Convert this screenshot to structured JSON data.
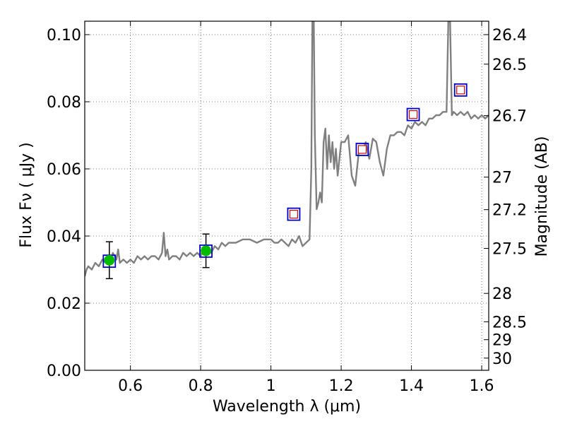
{
  "chart_data": {
    "type": "line",
    "xlabel": "Wavelength  λ (μm)",
    "ylabel": "Flux  Fν  ( μJy )",
    "y2label": "Magnitude (AB)",
    "xlim": [
      0.47,
      1.62
    ],
    "ylim": [
      0.0,
      0.104
    ],
    "x_ticks": [
      0.6,
      0.8,
      1.0,
      1.2,
      1.4,
      1.6
    ],
    "x_tick_labels": [
      "0.6",
      "0.8",
      "1",
      "1.2",
      "1.4",
      "1.6"
    ],
    "y_ticks": [
      0.0,
      0.02,
      0.04,
      0.06,
      0.08,
      0.1
    ],
    "y_tick_labels": [
      "0.00",
      "0.02",
      "0.04",
      "0.06",
      "0.08",
      "0.10"
    ],
    "y2_ticks": [
      {
        "label": "26.4",
        "mag": 26.4
      },
      {
        "label": "26.5",
        "mag": 26.5
      },
      {
        "label": "26.7",
        "mag": 26.7
      },
      {
        "label": "27",
        "mag": 27.0
      },
      {
        "label": "27.2",
        "mag": 27.2
      },
      {
        "label": "27.5",
        "mag": 27.5
      },
      {
        "label": "28",
        "mag": 28.0
      },
      {
        "label": "28.5",
        "mag": 28.5
      },
      {
        "label": "29",
        "mag": 29.0
      },
      {
        "label": "30",
        "mag": 30.0
      }
    ],
    "grid": true,
    "colors": {
      "spectrum": "#808080",
      "observed_marker": "#00bb00",
      "model_box": "#0000cc",
      "upper_limit_box": "#dd0000",
      "errorbar": "#000000"
    },
    "series": [
      {
        "name": "model spectrum",
        "kind": "line",
        "x": [
          0.47,
          0.475,
          0.48,
          0.49,
          0.5,
          0.51,
          0.52,
          0.53,
          0.54,
          0.545,
          0.55,
          0.56,
          0.565,
          0.57,
          0.58,
          0.59,
          0.6,
          0.61,
          0.62,
          0.63,
          0.64,
          0.65,
          0.66,
          0.67,
          0.68,
          0.69,
          0.695,
          0.7,
          0.705,
          0.71,
          0.72,
          0.73,
          0.74,
          0.75,
          0.76,
          0.77,
          0.78,
          0.79,
          0.8,
          0.81,
          0.82,
          0.83,
          0.84,
          0.85,
          0.86,
          0.87,
          0.88,
          0.89,
          0.9,
          0.92,
          0.94,
          0.96,
          0.98,
          1.0,
          1.01,
          1.02,
          1.03,
          1.04,
          1.05,
          1.06,
          1.07,
          1.08,
          1.09,
          1.1,
          1.11,
          1.115,
          1.118,
          1.122,
          1.125,
          1.13,
          1.135,
          1.14,
          1.145,
          1.15,
          1.155,
          1.16,
          1.165,
          1.17,
          1.175,
          1.18,
          1.185,
          1.19,
          1.2,
          1.21,
          1.22,
          1.23,
          1.24,
          1.25,
          1.26,
          1.27,
          1.28,
          1.29,
          1.3,
          1.31,
          1.32,
          1.33,
          1.34,
          1.35,
          1.36,
          1.37,
          1.38,
          1.39,
          1.4,
          1.41,
          1.42,
          1.43,
          1.44,
          1.45,
          1.46,
          1.47,
          1.48,
          1.49,
          1.5,
          1.505,
          1.51,
          1.515,
          1.52,
          1.53,
          1.54,
          1.55,
          1.56,
          1.57,
          1.58,
          1.59,
          1.6,
          1.61,
          1.62
        ],
        "y": [
          0.028,
          0.03,
          0.031,
          0.03,
          0.032,
          0.031,
          0.033,
          0.032,
          0.034,
          0.033,
          0.035,
          0.033,
          0.036,
          0.032,
          0.033,
          0.032,
          0.033,
          0.032,
          0.034,
          0.033,
          0.034,
          0.033,
          0.034,
          0.034,
          0.033,
          0.035,
          0.041,
          0.034,
          0.036,
          0.033,
          0.034,
          0.034,
          0.033,
          0.035,
          0.034,
          0.035,
          0.034,
          0.035,
          0.034,
          0.036,
          0.037,
          0.035,
          0.037,
          0.036,
          0.038,
          0.037,
          0.038,
          0.038,
          0.038,
          0.039,
          0.039,
          0.038,
          0.039,
          0.039,
          0.038,
          0.038,
          0.039,
          0.038,
          0.037,
          0.039,
          0.038,
          0.04,
          0.037,
          0.038,
          0.039,
          0.06,
          0.104,
          0.104,
          0.07,
          0.048,
          0.05,
          0.053,
          0.05,
          0.068,
          0.072,
          0.06,
          0.07,
          0.062,
          0.068,
          0.06,
          0.066,
          0.058,
          0.068,
          0.068,
          0.07,
          0.058,
          0.055,
          0.065,
          0.065,
          0.068,
          0.063,
          0.069,
          0.068,
          0.062,
          0.058,
          0.066,
          0.07,
          0.07,
          0.071,
          0.071,
          0.07,
          0.073,
          0.072,
          0.074,
          0.073,
          0.074,
          0.073,
          0.075,
          0.075,
          0.076,
          0.076,
          0.077,
          0.077,
          0.104,
          0.104,
          0.076,
          0.077,
          0.076,
          0.077,
          0.076,
          0.077,
          0.075,
          0.076,
          0.075,
          0.076,
          0.075,
          0.076
        ]
      },
      {
        "name": "observed photometry",
        "kind": "errorbar",
        "x": [
          0.54,
          0.815
        ],
        "y": [
          0.0328,
          0.0356
        ],
        "yerr": [
          0.0055,
          0.005
        ]
      },
      {
        "name": "model bandpass",
        "kind": "square",
        "x": [
          0.54,
          0.815,
          1.065,
          1.26,
          1.405,
          1.54
        ],
        "y": [
          0.0325,
          0.0355,
          0.0465,
          0.0658,
          0.0762,
          0.0835
        ]
      },
      {
        "name": "upper limits",
        "kind": "small-square",
        "x": [
          1.065,
          1.26,
          1.405,
          1.54
        ],
        "y": [
          0.0465,
          0.0658,
          0.0762,
          0.0835
        ]
      }
    ]
  }
}
